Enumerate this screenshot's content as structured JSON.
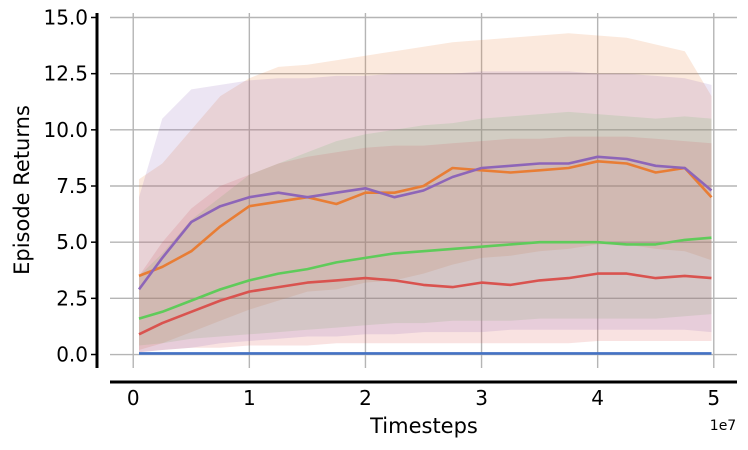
{
  "chart_data": {
    "type": "line",
    "title": "",
    "xlabel": "Timesteps",
    "ylabel": "Episode Returns",
    "x_offset_label": "1e7",
    "xlim": [
      -0.2,
      5.2
    ],
    "ylim": [
      -0.6,
      15.2
    ],
    "xticks": [
      0,
      1,
      2,
      3,
      4,
      5
    ],
    "xtick_labels": [
      "0",
      "1",
      "2",
      "3",
      "4",
      "5"
    ],
    "yticks": [
      0.0,
      2.5,
      5.0,
      7.5,
      10.0,
      12.5,
      15.0
    ],
    "ytick_labels": [
      "0.0",
      "2.5",
      "5.0",
      "7.5",
      "10.0",
      "12.5",
      "15.0"
    ],
    "grid": true,
    "legend": "none",
    "x": [
      0.05,
      0.25,
      0.5,
      0.75,
      1.0,
      1.25,
      1.5,
      1.75,
      2.0,
      2.25,
      2.5,
      2.75,
      3.0,
      3.25,
      3.5,
      3.75,
      4.0,
      4.25,
      4.5,
      4.75,
      4.98
    ],
    "series": [
      {
        "color": "#4472c4",
        "values": [
          0.05,
          0.05,
          0.05,
          0.05,
          0.05,
          0.05,
          0.05,
          0.05,
          0.05,
          0.05,
          0.05,
          0.05,
          0.05,
          0.05,
          0.05,
          0.05,
          0.05,
          0.05,
          0.05,
          0.05,
          0.05
        ],
        "lower": [
          0.0,
          0.0,
          0.0,
          0.0,
          0.0,
          0.0,
          0.0,
          0.0,
          0.0,
          0.0,
          0.0,
          0.0,
          0.0,
          0.0,
          0.0,
          0.0,
          0.0,
          0.0,
          0.0,
          0.0,
          0.0
        ],
        "upper": [
          0.1,
          0.1,
          0.1,
          0.1,
          0.1,
          0.1,
          0.1,
          0.1,
          0.1,
          0.1,
          0.1,
          0.1,
          0.1,
          0.1,
          0.1,
          0.1,
          0.1,
          0.1,
          0.1,
          0.1,
          0.1
        ]
      },
      {
        "color": "#e87d35",
        "values": [
          3.5,
          3.9,
          4.6,
          5.7,
          6.6,
          6.8,
          7.0,
          6.7,
          7.2,
          7.2,
          7.5,
          8.3,
          8.2,
          8.1,
          8.2,
          8.3,
          8.6,
          8.5,
          8.1,
          8.3,
          7.0
        ],
        "lower": [
          0.2,
          0.5,
          1.0,
          1.5,
          2.0,
          2.4,
          2.8,
          2.9,
          3.2,
          3.3,
          3.6,
          4.0,
          4.3,
          4.4,
          4.6,
          4.7,
          4.9,
          4.9,
          4.7,
          4.6,
          4.2
        ],
        "upper": [
          7.8,
          8.5,
          10.0,
          11.5,
          12.3,
          12.8,
          12.9,
          13.1,
          13.3,
          13.5,
          13.7,
          13.9,
          14.0,
          14.1,
          14.2,
          14.3,
          14.2,
          14.1,
          13.8,
          13.5,
          11.5
        ]
      },
      {
        "color": "#5fcb5a",
        "values": [
          1.6,
          1.9,
          2.4,
          2.9,
          3.3,
          3.6,
          3.8,
          4.1,
          4.3,
          4.5,
          4.6,
          4.7,
          4.8,
          4.9,
          5.0,
          5.0,
          5.0,
          4.9,
          4.9,
          5.1,
          5.2
        ],
        "lower": [
          0.4,
          0.5,
          0.7,
          0.8,
          0.9,
          1.0,
          1.1,
          1.2,
          1.3,
          1.4,
          1.4,
          1.5,
          1.5,
          1.5,
          1.6,
          1.6,
          1.6,
          1.6,
          1.6,
          1.7,
          1.8
        ],
        "upper": [
          3.5,
          4.5,
          6.0,
          7.0,
          8.0,
          8.5,
          9.0,
          9.5,
          9.8,
          10.0,
          10.2,
          10.3,
          10.5,
          10.6,
          10.7,
          10.8,
          10.7,
          10.6,
          10.5,
          10.6,
          10.5
        ]
      },
      {
        "color": "#d9534f",
        "values": [
          0.9,
          1.4,
          1.9,
          2.4,
          2.8,
          3.0,
          3.2,
          3.3,
          3.4,
          3.3,
          3.1,
          3.0,
          3.2,
          3.1,
          3.3,
          3.4,
          3.6,
          3.6,
          3.4,
          3.5,
          3.4
        ],
        "lower": [
          0.1,
          0.2,
          0.3,
          0.3,
          0.4,
          0.4,
          0.4,
          0.5,
          0.5,
          0.5,
          0.5,
          0.5,
          0.5,
          0.5,
          0.5,
          0.5,
          0.6,
          0.6,
          0.6,
          0.6,
          0.6
        ],
        "upper": [
          3.5,
          5.0,
          6.5,
          7.5,
          8.0,
          8.5,
          8.8,
          9.0,
          9.2,
          9.3,
          9.3,
          9.4,
          9.5,
          9.6,
          9.6,
          9.7,
          9.7,
          9.7,
          9.6,
          9.5,
          9.4
        ]
      },
      {
        "color": "#8d65b8",
        "values": [
          2.9,
          4.3,
          5.9,
          6.6,
          7.0,
          7.2,
          7.0,
          7.2,
          7.4,
          7.0,
          7.3,
          7.9,
          8.3,
          8.4,
          8.5,
          8.5,
          8.8,
          8.7,
          8.4,
          8.3,
          7.3
        ],
        "lower": [
          0.1,
          0.2,
          0.3,
          0.5,
          0.6,
          0.7,
          0.8,
          0.8,
          0.9,
          0.9,
          1.0,
          1.0,
          1.0,
          1.1,
          1.1,
          1.1,
          1.1,
          1.1,
          1.1,
          1.1,
          1.0
        ],
        "upper": [
          7.0,
          10.5,
          11.8,
          12.0,
          12.2,
          12.3,
          12.3,
          12.4,
          12.4,
          12.5,
          12.5,
          12.5,
          12.6,
          12.6,
          12.6,
          12.6,
          12.5,
          12.5,
          12.4,
          12.3,
          12.0
        ]
      }
    ]
  }
}
